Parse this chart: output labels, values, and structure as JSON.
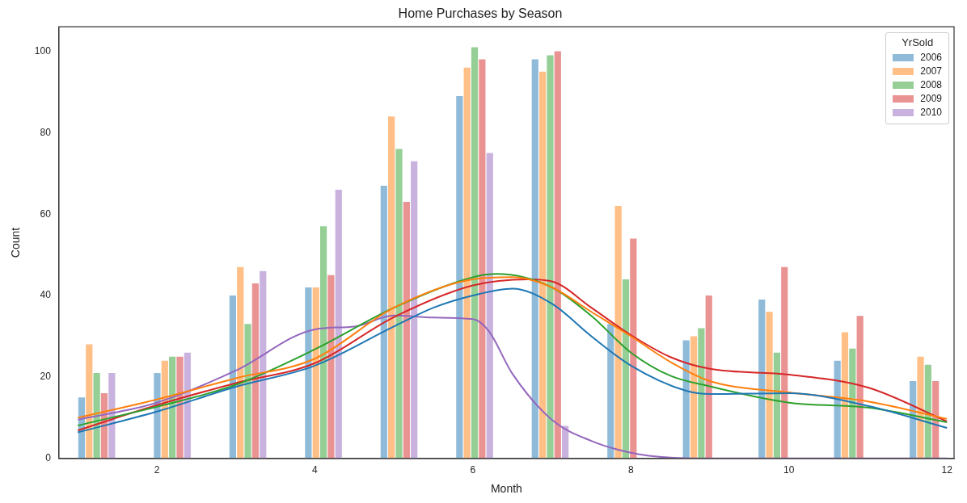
{
  "chart_data": {
    "type": "histogram",
    "title": "Home Purchases by Season",
    "xlabel": "Month",
    "ylabel": "Count",
    "legend_title": "YrSold",
    "legend": "top right",
    "bins": [
      1,
      1.478,
      1.957,
      2.435,
      2.913,
      3.391,
      3.87,
      4.348,
      4.826,
      5.304,
      5.783,
      6.261,
      6.739,
      7.217,
      7.696,
      8.174,
      8.652,
      9.13,
      9.609,
      10.087,
      10.565,
      11.043,
      11.522,
      12
    ],
    "xlim": [
      0.76,
      12.09
    ],
    "xticks": [
      2,
      4,
      6,
      8,
      10,
      12
    ],
    "ylim": [
      0,
      106
    ],
    "yticks": [
      0,
      20,
      40,
      60,
      80,
      100
    ],
    "series": [
      {
        "name": "2006",
        "color": "#8fbbd9",
        "values": [
          15,
          0,
          21,
          0,
          40,
          0,
          42,
          0,
          67,
          0,
          89,
          0,
          98,
          0,
          33,
          0,
          29,
          0,
          39,
          0,
          24,
          0,
          19
        ]
      },
      {
        "name": "2007",
        "color": "#ffbf86",
        "values": [
          28,
          0,
          24,
          0,
          47,
          0,
          42,
          0,
          84,
          0,
          96,
          0,
          95,
          0,
          62,
          0,
          30,
          0,
          36,
          0,
          31,
          0,
          25
        ]
      },
      {
        "name": "2008",
        "color": "#95cf95",
        "values": [
          21,
          0,
          25,
          0,
          33,
          0,
          57,
          0,
          76,
          0,
          101,
          0,
          99,
          0,
          44,
          0,
          32,
          0,
          26,
          0,
          27,
          0,
          23
        ]
      },
      {
        "name": "2009",
        "color": "#ea9393",
        "values": [
          16,
          0,
          25,
          0,
          43,
          0,
          45,
          0,
          63,
          0,
          98,
          0,
          100,
          0,
          54,
          0,
          40,
          0,
          47,
          0,
          35,
          0,
          19
        ]
      },
      {
        "name": "2010",
        "color": "#c9b3de",
        "values": [
          21,
          0,
          26,
          0,
          46,
          0,
          66,
          0,
          73,
          0,
          75,
          0,
          8,
          0,
          0,
          0,
          0,
          0,
          0,
          0,
          0,
          0,
          0
        ]
      },
      {
        "type": "line",
        "color": "#1f77b4",
        "x": [
          1,
          2,
          3,
          4,
          5,
          5.5,
          6,
          6.5,
          7,
          7.5,
          8,
          8.7,
          9,
          10,
          11,
          12
        ],
        "values": [
          6.4,
          11.5,
          17.6,
          22.8,
          32.4,
          37,
          40,
          41.7,
          38,
          30,
          22.8,
          16.6,
          15.8,
          16,
          12.9,
          7.5
        ]
      },
      {
        "type": "line",
        "color": "#ff7f0e",
        "x": [
          1,
          2,
          3,
          4,
          5,
          6,
          6.5,
          7,
          7.5,
          8,
          8.5,
          9,
          10,
          11,
          12
        ],
        "values": [
          10,
          14.5,
          19.7,
          24.5,
          37,
          44,
          44.5,
          42,
          36,
          30,
          23.7,
          19,
          16.2,
          14,
          9.7
        ]
      },
      {
        "type": "line",
        "color": "#2ca02c",
        "x": [
          1,
          2,
          3,
          4,
          5,
          6,
          6.3,
          7,
          7.5,
          8,
          8.5,
          9,
          10,
          11,
          12
        ],
        "values": [
          8.1,
          12.7,
          18.1,
          26.8,
          37,
          44.5,
          45.3,
          42,
          35,
          26,
          20.3,
          17.7,
          13.7,
          12.5,
          8.9
        ]
      },
      {
        "type": "line",
        "color": "#d62728",
        "x": [
          1,
          2,
          3,
          4,
          5,
          6,
          6.7,
          7,
          7.5,
          8,
          8.5,
          9,
          10,
          11,
          12
        ],
        "values": [
          6.9,
          13.1,
          18.5,
          23.4,
          34.7,
          42.5,
          44,
          43.5,
          37,
          30.3,
          24.9,
          22,
          20.6,
          17.4,
          9.1
        ]
      },
      {
        "type": "line",
        "color": "#9467bd",
        "x": [
          1,
          2,
          3,
          4,
          4.5,
          5,
          5.5,
          6,
          6.2,
          6.5,
          7,
          7.5,
          8,
          8.5,
          9,
          10,
          11,
          12
        ],
        "values": [
          9.5,
          13.7,
          21.6,
          31.7,
          32.4,
          35.1,
          34.6,
          34.2,
          31.3,
          20.8,
          9.5,
          4.3,
          1.4,
          0.2,
          0,
          0,
          0,
          0
        ]
      }
    ]
  }
}
